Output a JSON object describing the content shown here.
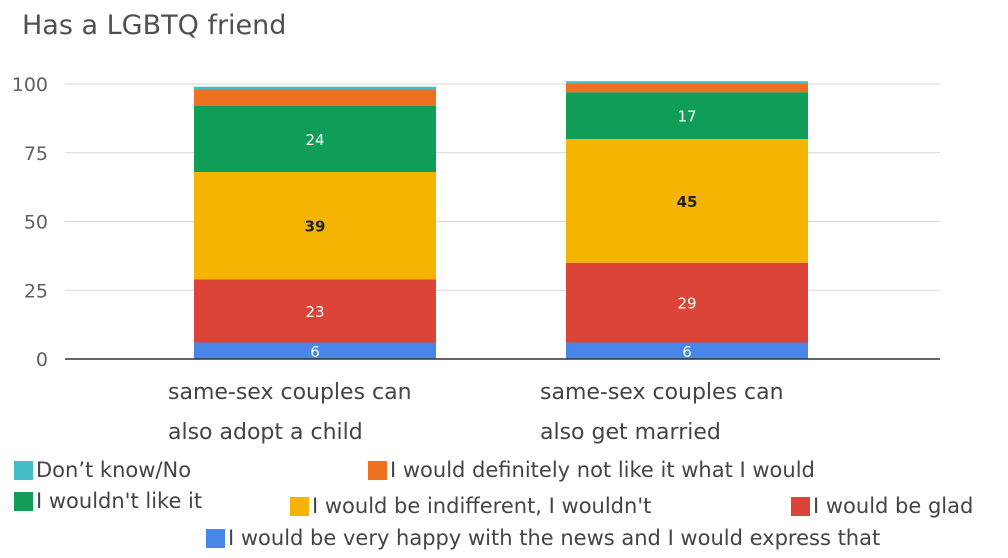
{
  "chart_data": {
    "type": "bar",
    "stacked": true,
    "title": "Has a LGBTQ friend",
    "categories": [
      [
        "same-sex couples can",
        "also adopt a child"
      ],
      [
        "same-sex couples can",
        "also get married"
      ]
    ],
    "ylim": [
      0,
      100
    ],
    "yticks": [
      0,
      25,
      50,
      75,
      100
    ],
    "grid": true,
    "legend_position": "bottom",
    "series": [
      {
        "name": "I would be very happy with the news and I would express that",
        "color": "#4a86e8",
        "values": [
          6,
          6
        ],
        "labels": [
          "6",
          "6"
        ]
      },
      {
        "name": "I would be glad",
        "color": "#db4437",
        "values": [
          23,
          29
        ],
        "labels": [
          "23",
          "29"
        ]
      },
      {
        "name": "I would be indifferent, I wouldn't",
        "color": "#f4b400",
        "values": [
          39,
          45
        ],
        "labels": [
          "39",
          "45"
        ]
      },
      {
        "name": "I wouldn't like it",
        "color": "#0f9d58",
        "values": [
          24,
          17
        ],
        "labels": [
          "24",
          "17"
        ]
      },
      {
        "name": "I would definitely not like it what I would",
        "color": "#ee7021",
        "values": [
          6,
          3
        ],
        "labels": [
          "",
          ""
        ]
      },
      {
        "name": "Don’t know/No",
        "color": "#46bdc6",
        "values": [
          1,
          1
        ],
        "labels": [
          "",
          ""
        ]
      }
    ]
  }
}
